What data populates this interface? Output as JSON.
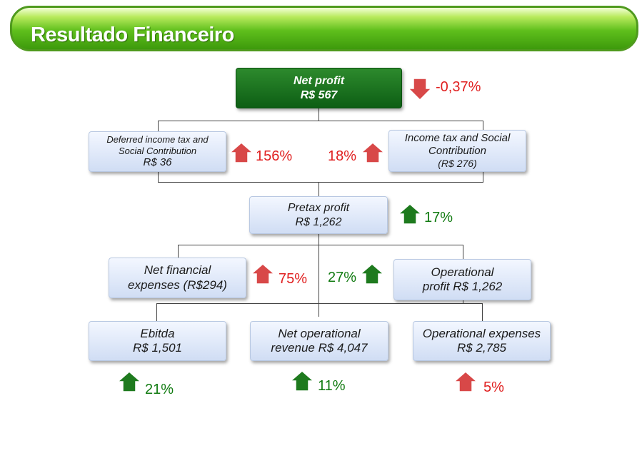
{
  "header": {
    "title": "Resultado Financeiro"
  },
  "net_profit": {
    "line1": "Net profit",
    "line2": "R$ 567",
    "change": "-0,37%",
    "direction": "down",
    "color": "#e02020"
  },
  "deferred_tax": {
    "line1": "Deferred income tax and",
    "line2": "Social Contribution",
    "line3": "R$ 36",
    "change": "156%",
    "direction": "up",
    "color": "#e02020"
  },
  "income_tax": {
    "line1": "Income tax and Social",
    "line2": "Contribution",
    "line3": "(R$ 276)",
    "change": "18%",
    "direction": "up",
    "color": "#e02020"
  },
  "pretax_profit": {
    "line1": "Pretax profit",
    "line2": "R$ 1,262",
    "change": "17%",
    "direction": "up",
    "color": "#107a10"
  },
  "net_financial": {
    "line1": "Net financial",
    "line2": "expenses  (R$294)",
    "change": "75%",
    "direction": "up",
    "color": "#e02020"
  },
  "operational_profit": {
    "line1": "Operational",
    "line2": "profit R$ 1,262",
    "change": "27%",
    "direction": "up",
    "color": "#107a10"
  },
  "ebitda": {
    "line1": "Ebitda",
    "line2": "R$ 1,501",
    "change": "21%",
    "direction": "up",
    "color": "#107a10"
  },
  "net_revenue": {
    "line1": "Net operational",
    "line2": "revenue R$ 4,047",
    "change": "11%",
    "direction": "up",
    "color": "#107a10"
  },
  "op_expenses": {
    "line1": "Operational expenses",
    "line2": "R$ 2,785",
    "change": "5%",
    "direction": "up",
    "color": "#e02020"
  }
}
